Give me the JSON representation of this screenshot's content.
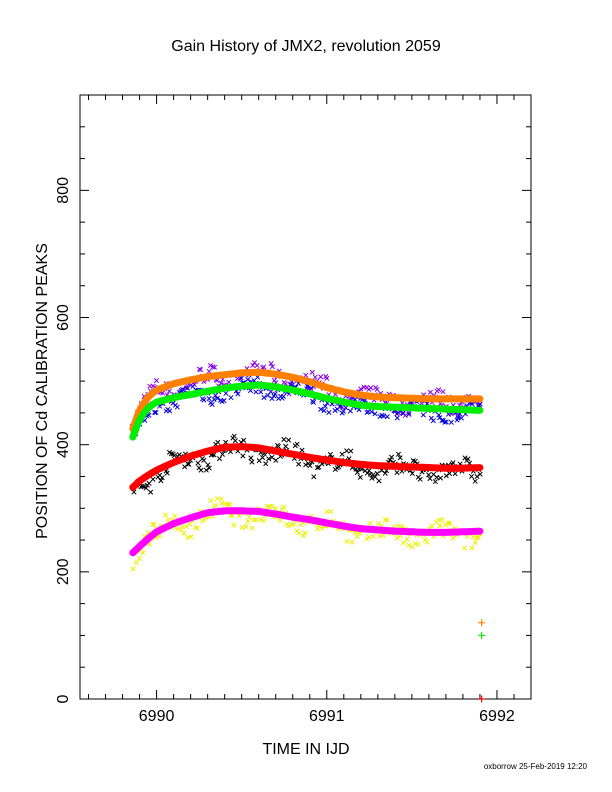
{
  "chart_data": {
    "type": "scatter",
    "title": "Gain History of JMX2, revolution 2059",
    "xlabel": "TIME IN IJD",
    "ylabel": "POSITION OF Cd CALIBRATION PEAKS",
    "xlim": [
      6989.55,
      6992.2
    ],
    "ylim": [
      0,
      950
    ],
    "x_ticks": [
      6990,
      6991,
      6992
    ],
    "x_tick_labels": [
      "6990",
      "6991",
      "6992"
    ],
    "x_minor_step": 0.1,
    "y_ticks": [
      0,
      200,
      400,
      600,
      800
    ],
    "y_tick_labels": [
      "0",
      "200",
      "400",
      "600",
      "800"
    ],
    "y_minor_step": 50,
    "grid": false,
    "x_range_of_points": [
      6989.86,
      6991.9
    ],
    "fits": [
      {
        "color": "#ff8000",
        "x": [
          6989.86,
          6989.9,
          6989.95,
          6990.0,
          6990.1,
          6990.2,
          6990.3,
          6990.4,
          6990.5,
          6990.6,
          6990.7,
          6990.8,
          6990.9,
          6991.0,
          6991.1,
          6991.2,
          6991.3,
          6991.4,
          6991.5,
          6991.6,
          6991.7,
          6991.8,
          6991.9
        ],
        "y": [
          425,
          455,
          475,
          486,
          496,
          502,
          507,
          510,
          513,
          514,
          511,
          506,
          499,
          490,
          483,
          478,
          475,
          474,
          473,
          472,
          472,
          472,
          472
        ]
      },
      {
        "color": "#00ee00",
        "x": [
          6989.86,
          6989.9,
          6989.95,
          6990.0,
          6990.1,
          6990.2,
          6990.3,
          6990.4,
          6990.5,
          6990.6,
          6990.7,
          6990.8,
          6990.9,
          6991.0,
          6991.1,
          6991.2,
          6991.3,
          6991.4,
          6991.5,
          6991.6,
          6991.7,
          6991.8,
          6991.9
        ],
        "y": [
          412,
          440,
          458,
          467,
          474,
          479,
          484,
          489,
          492,
          494,
          491,
          486,
          480,
          473,
          467,
          462,
          460,
          459,
          458,
          457,
          456,
          455,
          454
        ]
      },
      {
        "color": "#ff0000",
        "x": [
          6989.86,
          6989.9,
          6989.95,
          6990.0,
          6990.1,
          6990.2,
          6990.3,
          6990.4,
          6990.5,
          6990.6,
          6990.7,
          6990.8,
          6990.9,
          6991.0,
          6991.1,
          6991.2,
          6991.3,
          6991.4,
          6991.5,
          6991.6,
          6991.7,
          6991.8,
          6991.9
        ],
        "y": [
          333,
          343,
          352,
          360,
          372,
          382,
          390,
          396,
          397,
          395,
          390,
          385,
          380,
          376,
          372,
          369,
          367,
          366,
          365,
          364,
          363,
          363,
          364
        ]
      },
      {
        "color": "#ff00ff",
        "x": [
          6989.86,
          6989.9,
          6989.95,
          6990.0,
          6990.1,
          6990.2,
          6990.3,
          6990.4,
          6990.5,
          6990.6,
          6990.7,
          6990.8,
          6990.9,
          6991.0,
          6991.1,
          6991.2,
          6991.3,
          6991.4,
          6991.5,
          6991.6,
          6991.7,
          6991.8,
          6991.9
        ],
        "y": [
          230,
          240,
          252,
          263,
          276,
          285,
          293,
          296,
          296,
          295,
          291,
          286,
          282,
          277,
          272,
          268,
          266,
          264,
          263,
          262,
          262,
          263,
          264
        ]
      }
    ],
    "scatter_series": [
      {
        "color": "#8a00e6",
        "marker": "x",
        "follows_fit": 0,
        "spread": 22
      },
      {
        "color": "#0000dd",
        "marker": "x",
        "follows_fit": 1,
        "spread": 20
      },
      {
        "color": "#000000",
        "marker": "x",
        "follows_fit": 2,
        "spread": 24
      },
      {
        "color": "#eeee00",
        "marker": "x",
        "follows_fit": 3,
        "spread": 24
      }
    ],
    "extra_points": [
      {
        "color": "#ff8000",
        "marker": "+",
        "x": 6991.91,
        "y": 120
      },
      {
        "color": "#00ee00",
        "marker": "+",
        "x": 6991.91,
        "y": 100
      },
      {
        "color": "#ff0000",
        "marker": "+",
        "x": 6991.91,
        "y": 0
      }
    ]
  },
  "footer": "oxborrow 25-Feb-2019 12:20"
}
